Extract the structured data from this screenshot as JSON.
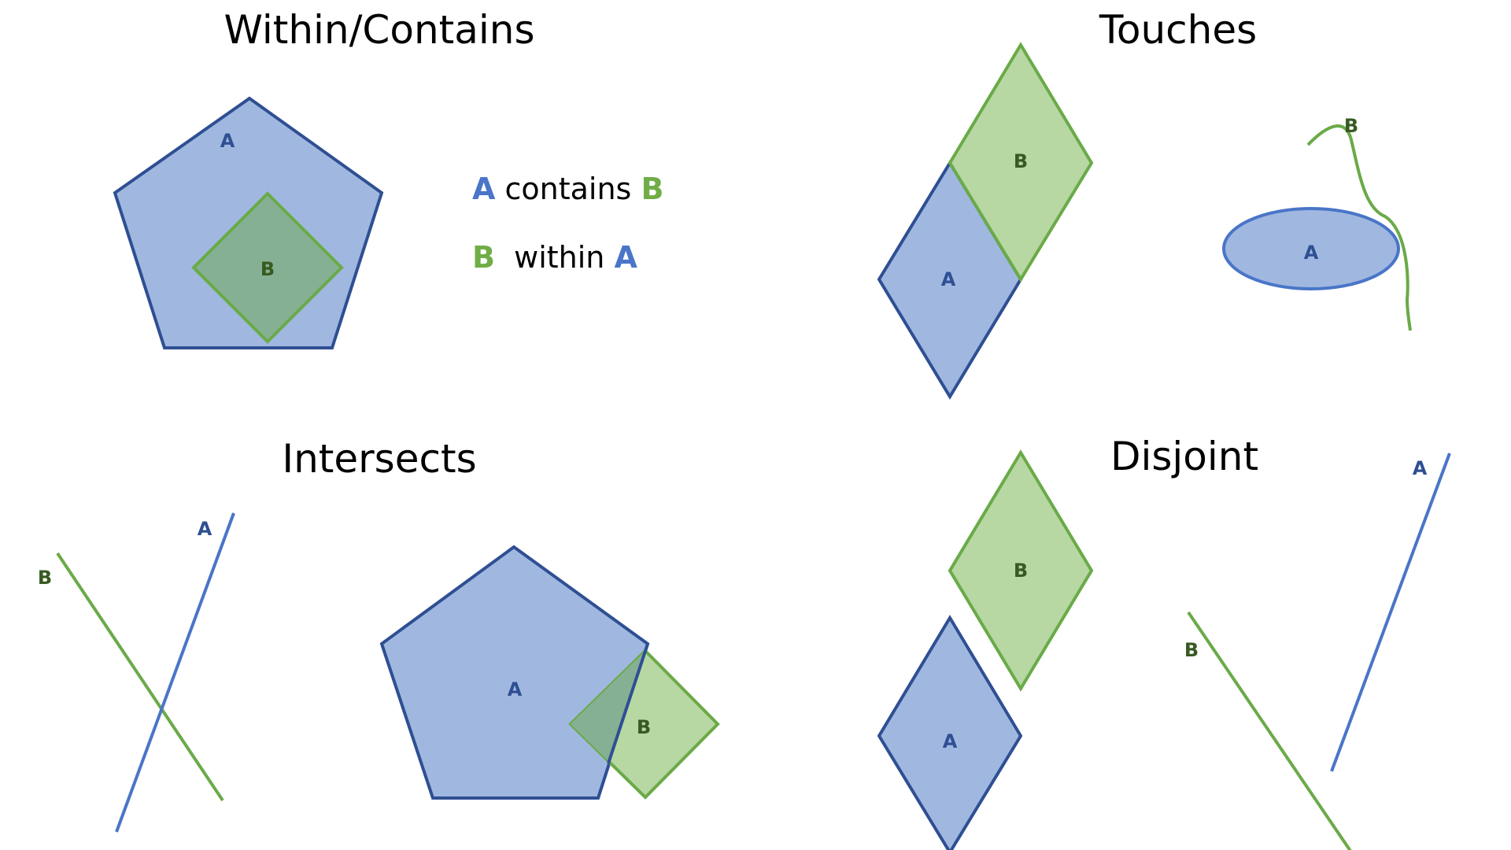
{
  "colors": {
    "a_fill": "#a0b8e0",
    "a_stroke": "#2f4f93",
    "a_line": "#4a75c8",
    "a_label": "#2f4f93",
    "b_fill": "#b7d7a3",
    "b_stroke": "#6aaa48",
    "b_label": "#375a22",
    "overlap_fill": "#86b093",
    "legend_a": "#4a75c8",
    "legend_b": "#70ad47"
  },
  "panels": {
    "within_contains": {
      "title": "Within/Contains",
      "label_a": "A",
      "label_b": "B",
      "legend": [
        {
          "key_a": "A",
          "text": " contains ",
          "key_b": "B"
        },
        {
          "key_b": "B",
          "text": "  within ",
          "key_a": "A"
        }
      ]
    },
    "touches": {
      "title": "Touches",
      "diamond_label_a": "A",
      "diamond_label_b": "B",
      "ellipse_label_a": "A",
      "curve_label_b": "B"
    },
    "intersects": {
      "title": "Intersects",
      "line_label_a": "A",
      "line_label_b": "B",
      "polygon_label_a": "A",
      "square_label_b": "B"
    },
    "disjoint": {
      "title": "Disjoint",
      "diamond_label_a": "A",
      "diamond_label_b": "B",
      "line_label_a": "A",
      "line_label_b": "B"
    }
  }
}
